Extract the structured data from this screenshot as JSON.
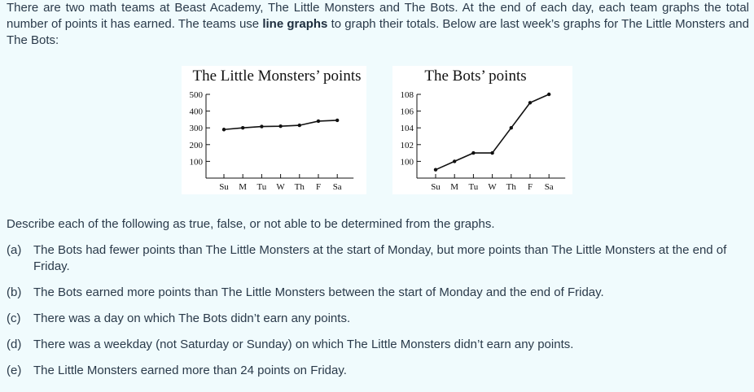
{
  "intro": {
    "part1": "There are two math teams at Beast Academy, The Little Monsters and The Bots. At the end of each day, each team graphs the total number of points it has earned. The teams use ",
    "bold": "line graphs",
    "part2": " to graph their totals. Below are last week’s graphs for The Little Monsters and The Bots:"
  },
  "chart_data": [
    {
      "type": "line",
      "title": "The Little Monsters’ points",
      "categories": [
        "Su",
        "M",
        "Tu",
        "W",
        "Th",
        "F",
        "Sa"
      ],
      "values": [
        290,
        300,
        308,
        310,
        315,
        340,
        345
      ],
      "yticks": [
        100,
        200,
        300,
        400,
        500
      ],
      "ylim": [
        0,
        500
      ],
      "xlabel": "",
      "ylabel": ""
    },
    {
      "type": "line",
      "title": "The Bots’ points",
      "categories": [
        "Su",
        "M",
        "Tu",
        "W",
        "Th",
        "F",
        "Sa"
      ],
      "values": [
        99,
        100,
        101,
        101,
        104,
        107,
        108
      ],
      "yticks": [
        100,
        102,
        104,
        106,
        108
      ],
      "ylim": [
        98,
        108
      ],
      "xlabel": "",
      "ylabel": ""
    }
  ],
  "question": "Describe each of the following as true, false, or not able to be determined from the graphs.",
  "items": [
    {
      "letter": "(a)",
      "text": "The Bots had fewer points than The Little Monsters at the start of Monday, but more points than The Little Monsters at the end of Friday."
    },
    {
      "letter": "(b)",
      "text": "The Bots earned more points than The Little Monsters between the start of Monday and the end of Friday."
    },
    {
      "letter": "(c)",
      "text": "There was a day on which The Bots didn’t earn any points."
    },
    {
      "letter": "(d)",
      "text": "There was a weekday (not Saturday or Sunday) on which The Little Monsters didn’t earn any points."
    },
    {
      "letter": "(e)",
      "text": "The Little Monsters earned more than 24 points on Friday."
    }
  ]
}
